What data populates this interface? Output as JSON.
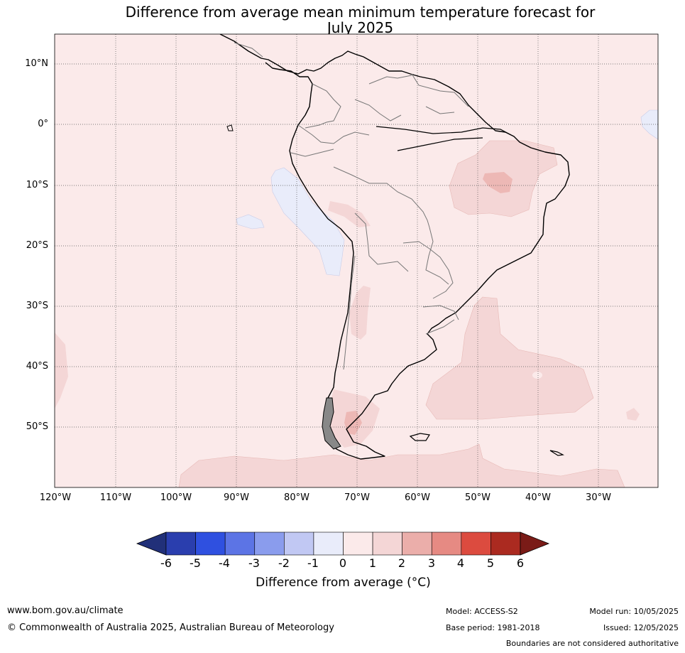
{
  "title": {
    "line1": "Difference from average mean minimum temperature forecast for",
    "line2": "July 2025"
  },
  "map": {
    "latitude_labels": [
      "10°N",
      "0°",
      "10°S",
      "20°S",
      "30°S",
      "40°S",
      "50°S"
    ],
    "longitude_labels": [
      "120°W",
      "110°W",
      "100°W",
      "90°W",
      "80°W",
      "70°W",
      "60°W",
      "50°W",
      "40°W",
      "30°W"
    ],
    "background_class": "0 to 1",
    "anomaly_regions": [
      {
        "name": "north-east Brazil",
        "range": "1 to 2"
      },
      {
        "name": "north-east Brazil core",
        "range": "2 to 3"
      },
      {
        "name": "central Andes",
        "range": "1 to 2"
      },
      {
        "name": "central Argentina",
        "range": "1 to 2"
      },
      {
        "name": "south-west Atlantic",
        "range": "1 to 2"
      },
      {
        "name": "Patagonia",
        "range": "1 to 2"
      },
      {
        "name": "Patagonia core",
        "range": "2 to 3"
      },
      {
        "name": "Southern Ocean",
        "range": "1 to 2"
      },
      {
        "name": "east Pacific off Peru",
        "range": "-1 to 0"
      },
      {
        "name": "equatorial Atlantic",
        "range": "-1 to 0"
      }
    ]
  },
  "colorbar": {
    "ticks": [
      "-6",
      "-5",
      "-4",
      "-3",
      "-2",
      "-1",
      "0",
      "1",
      "2",
      "3",
      "4",
      "5",
      "6"
    ],
    "colors": [
      "#2a3eae",
      "#2f50e0",
      "#5c74e5",
      "#8a9ced",
      "#c1c8f3",
      "#e9ecfa",
      "#fbeaea",
      "#f4d6d6",
      "#ebaeaa",
      "#e68a83",
      "#dc4b3f",
      "#ab2a20"
    ],
    "under_color": "#213079",
    "over_color": "#7a1b17",
    "label": "Difference from average (°C)"
  },
  "footer": {
    "site": "www.bom.gov.au/climate",
    "copyright": "© Commonwealth of Australia 2025, Australian Bureau of Meteorology",
    "model": "Model: ACCESS-S2",
    "base_period": "Base period: 1981-2018",
    "model_run": "Model run: 10/05/2025",
    "issued": "Issued: 12/05/2025",
    "disclaimer": "Boundaries are not considered authoritative"
  }
}
